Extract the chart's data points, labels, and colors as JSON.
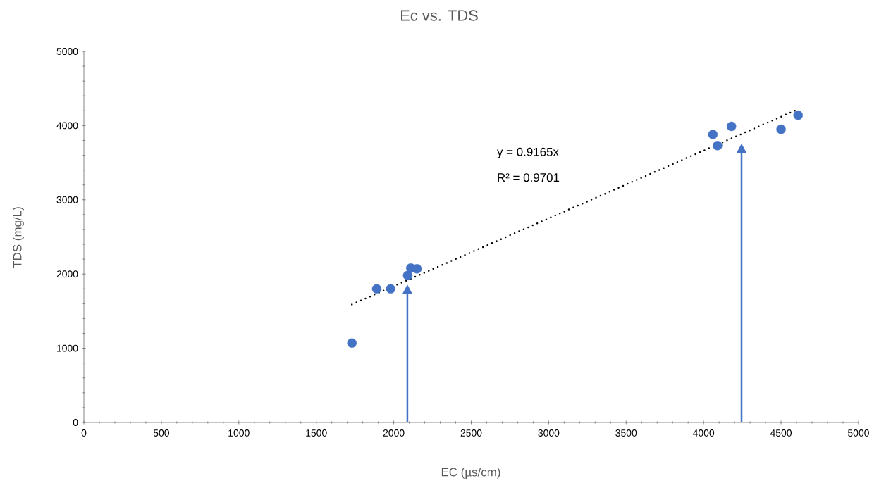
{
  "chart_data": {
    "type": "scatter",
    "title": "Ec vs. TDS",
    "xlabel": "EC (µs/cm)",
    "ylabel": "TDS (mg/L)",
    "xlim": [
      0,
      5000
    ],
    "ylim": [
      0,
      5000
    ],
    "xticks": [
      0,
      500,
      1000,
      1500,
      2000,
      2500,
      3000,
      3500,
      4000,
      4500,
      5000
    ],
    "yticks": [
      0,
      1000,
      2000,
      3000,
      4000,
      5000
    ],
    "grid": false,
    "series": [
      {
        "color": "#4472c4",
        "marker": "circle",
        "x": [
          1730,
          1890,
          1980,
          2090,
          2110,
          2150,
          4060,
          4090,
          4180,
          4500,
          4610
        ],
        "values": [
          1070,
          1800,
          1800,
          1980,
          2080,
          2070,
          3880,
          3730,
          3990,
          3950,
          4140
        ]
      },
      {
        "type": "line",
        "color": "#000000",
        "line_style": "dotted",
        "x": [
          1730,
          4610
        ],
        "values": [
          1590,
          4220
        ]
      }
    ],
    "annotations": [
      "y = 0.9165x",
      "R² = 0.9701"
    ]
  }
}
